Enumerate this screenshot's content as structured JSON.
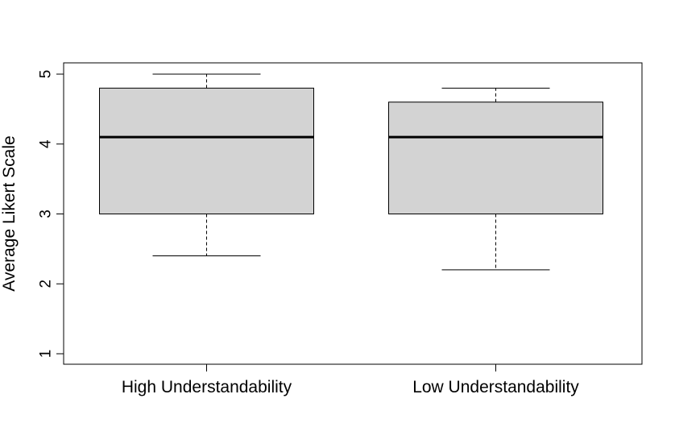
{
  "chart_data": {
    "type": "boxplot",
    "title": "",
    "xlabel": "",
    "ylabel": "Average Likert Scale",
    "ylim": [
      1,
      5
    ],
    "yticks": [
      1,
      2,
      3,
      4,
      5
    ],
    "categories": [
      "High Understandability",
      "Low Understandability"
    ],
    "boxes": [
      {
        "min": 2.4,
        "q1": 3.0,
        "median": 4.1,
        "q3": 4.8,
        "max": 5.0
      },
      {
        "min": 2.2,
        "q1": 3.0,
        "median": 4.1,
        "q3": 4.6,
        "max": 4.8
      }
    ],
    "grid": false,
    "colors": {
      "box_fill": "#d3d3d3",
      "stroke": "#000000",
      "background": "#ffffff"
    }
  }
}
